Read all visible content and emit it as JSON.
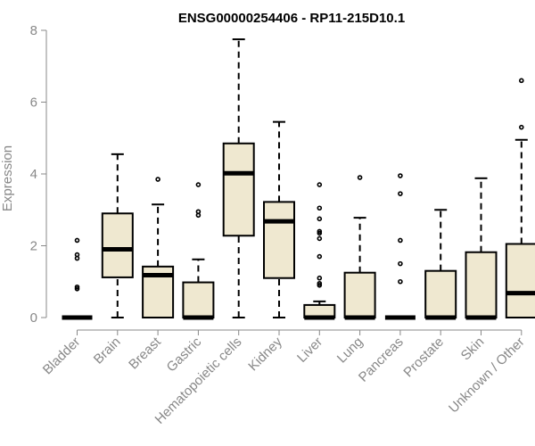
{
  "chart_data": {
    "type": "boxplot",
    "title": "ENSG00000254406 - RP11-215D10.1",
    "xlabel": "",
    "ylabel": "Expression",
    "ylim": [
      0,
      8
    ],
    "yticks": [
      0,
      2,
      4,
      6,
      8
    ],
    "grid": false,
    "colors": {
      "box_fill": "#efe8d0",
      "box_stroke": "#000000",
      "axis": "#888888"
    },
    "categories": [
      "Bladder",
      "Brain",
      "Breast",
      "Gastric",
      "Hematopoietic cells",
      "Kidney",
      "Liver",
      "Lung",
      "Pancreas",
      "Prostate",
      "Skin",
      "Unknown / Other"
    ],
    "boxes": [
      {
        "category": "Bladder",
        "q1": 0,
        "median": 0,
        "q3": 0,
        "whisker_low": 0,
        "whisker_high": 0,
        "outliers": [
          0.8,
          0.85,
          1.65,
          1.75,
          2.15
        ]
      },
      {
        "category": "Brain",
        "q1": 1.12,
        "median": 1.9,
        "q3": 2.9,
        "whisker_low": 0,
        "whisker_high": 4.55,
        "outliers": []
      },
      {
        "category": "Breast",
        "q1": 0,
        "median": 1.18,
        "q3": 1.42,
        "whisker_low": 0,
        "whisker_high": 3.15,
        "outliers": [
          3.85
        ]
      },
      {
        "category": "Gastric",
        "q1": 0,
        "median": 0,
        "q3": 0.98,
        "whisker_low": 0,
        "whisker_high": 1.62,
        "outliers": [
          2.85,
          2.95,
          3.7
        ]
      },
      {
        "category": "Hematopoietic cells",
        "q1": 2.28,
        "median": 4.02,
        "q3": 4.85,
        "whisker_low": 0,
        "whisker_high": 7.75,
        "outliers": []
      },
      {
        "category": "Kidney",
        "q1": 1.1,
        "median": 2.68,
        "q3": 3.22,
        "whisker_low": 0,
        "whisker_high": 5.45,
        "outliers": []
      },
      {
        "category": "Liver",
        "q1": 0,
        "median": 0,
        "q3": 0.35,
        "whisker_low": 0,
        "whisker_high": 0.45,
        "outliers": [
          0.9,
          0.95,
          1.1,
          1.7,
          2.2,
          2.35,
          2.4,
          2.75,
          3.05,
          3.7
        ]
      },
      {
        "category": "Lung",
        "q1": 0,
        "median": 0,
        "q3": 1.25,
        "whisker_low": 0,
        "whisker_high": 2.78,
        "outliers": [
          3.9
        ]
      },
      {
        "category": "Pancreas",
        "q1": 0,
        "median": 0,
        "q3": 0,
        "whisker_low": 0,
        "whisker_high": 0,
        "outliers": [
          1.0,
          1.5,
          2.15,
          3.45,
          3.95
        ]
      },
      {
        "category": "Prostate",
        "q1": 0,
        "median": 0,
        "q3": 1.3,
        "whisker_low": 0,
        "whisker_high": 3.0,
        "outliers": []
      },
      {
        "category": "Skin",
        "q1": 0,
        "median": 0,
        "q3": 1.82,
        "whisker_low": 0,
        "whisker_high": 3.88,
        "outliers": []
      },
      {
        "category": "Unknown / Other",
        "q1": 0,
        "median": 0.68,
        "q3": 2.05,
        "whisker_low": 0,
        "whisker_high": 4.95,
        "outliers": [
          5.3,
          6.6
        ]
      }
    ]
  }
}
